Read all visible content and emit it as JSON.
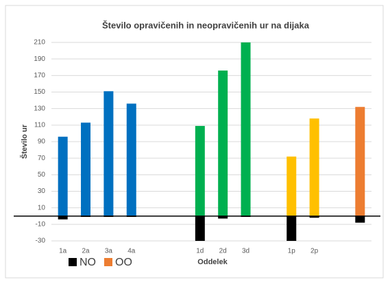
{
  "chart_data": {
    "type": "bar",
    "title": "Število opravičenih in neopravičenih ur na dijaka",
    "y_label": "Število ur",
    "x_label": "Oddelek",
    "categories": [
      "1a",
      "2a",
      "3a",
      "4a",
      null,
      null,
      "1d",
      "2d",
      "3d",
      null,
      "1p",
      "2p",
      null,
      null
    ],
    "series": [
      {
        "name": "NO",
        "color": "#000000",
        "values": [
          -4,
          -1,
          -1,
          -1,
          null,
          null,
          -30,
          -3,
          -1,
          null,
          -30,
          -2,
          null,
          -8
        ]
      },
      {
        "name": "OO",
        "color": "#ed7d31",
        "values": [
          96,
          113,
          151,
          136,
          null,
          null,
          109,
          176,
          210,
          null,
          72,
          118,
          null,
          132
        ],
        "colors": [
          "#0070c0",
          "#0070c0",
          "#0070c0",
          "#0070c0",
          null,
          null,
          "#00b050",
          "#00b050",
          "#00b050",
          null,
          "#ffc000",
          "#ffc000",
          null,
          "#ed7d31"
        ]
      }
    ],
    "ylim": [
      -30,
      210
    ],
    "yticks": [
      -30,
      -10,
      10,
      30,
      50,
      70,
      90,
      110,
      130,
      150,
      170,
      190,
      210
    ],
    "grid": true,
    "legend": "bottom-left"
  }
}
